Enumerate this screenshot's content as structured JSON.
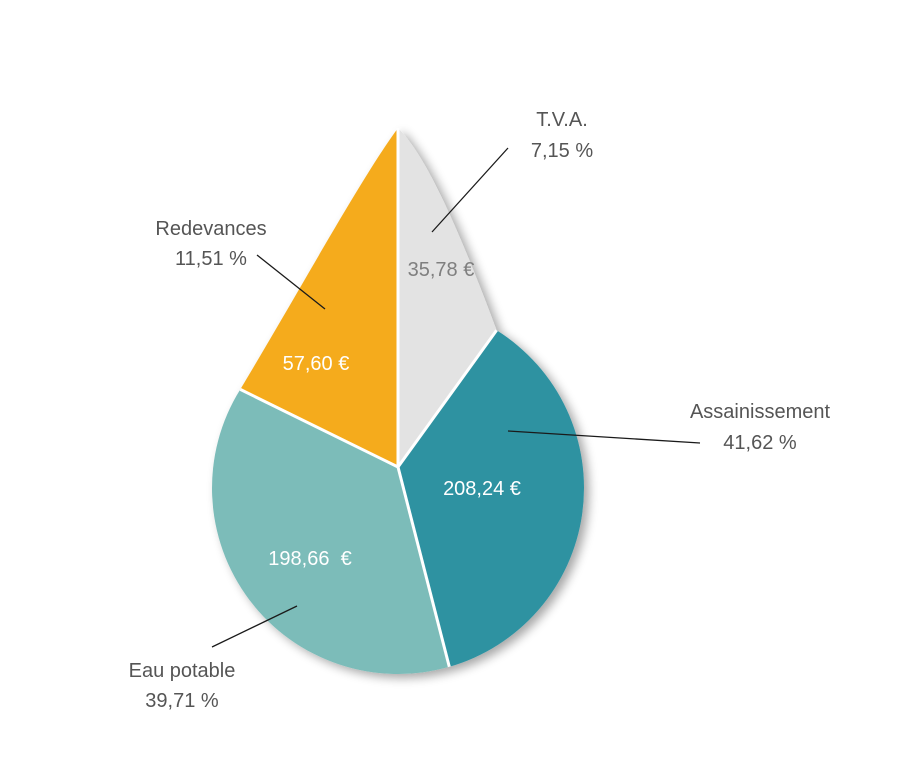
{
  "chart_data": {
    "type": "pie",
    "shape": "water-drop",
    "slices": [
      {
        "key": "tva",
        "label": "T.V.A.",
        "percent_label": "7,15 %",
        "value_label": "35,78 €",
        "value": 35.78,
        "percent": 7.15,
        "color": "#e3e3e3"
      },
      {
        "key": "assainissement",
        "label": "Assainissement",
        "percent_label": "41,62 %",
        "value_label": "208,24 €",
        "value": 208.24,
        "percent": 41.62,
        "color": "#2e92a1"
      },
      {
        "key": "eau",
        "label": "Eau potable",
        "percent_label": "39,71 %",
        "value_label": "198,66  €",
        "value": 198.66,
        "percent": 39.71,
        "color": "#7bbcb9"
      },
      {
        "key": "redevances",
        "label": "Redevances",
        "percent_label": "11,51 %",
        "value_label": "57,60 €",
        "value": 57.6,
        "percent": 11.51,
        "color": "#f5ab1e"
      }
    ]
  }
}
